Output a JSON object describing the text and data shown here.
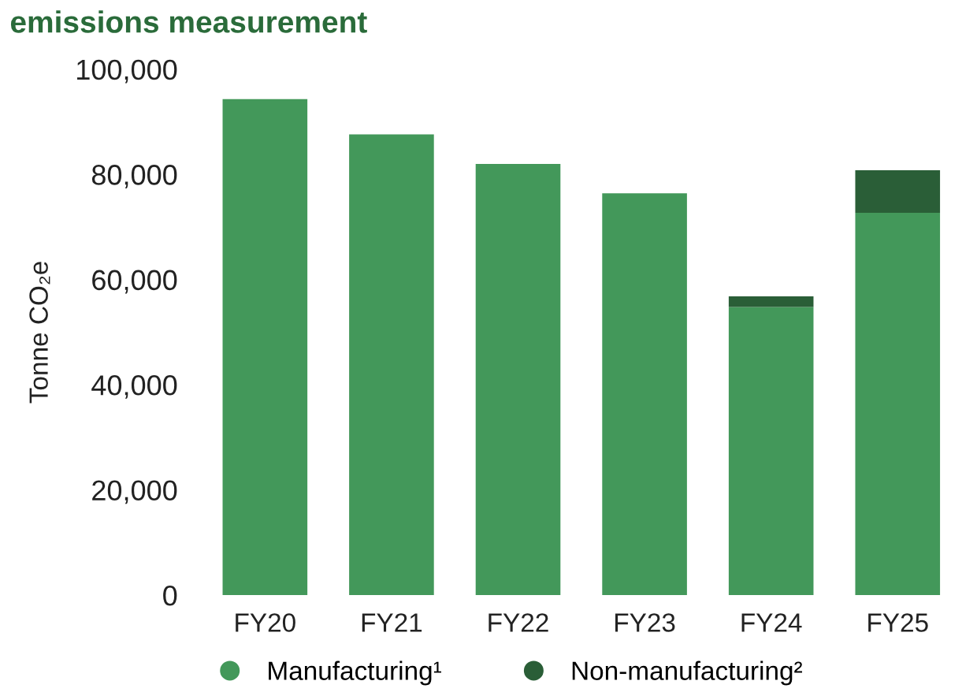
{
  "chart_data": {
    "type": "bar",
    "title": "emissions measurement",
    "ylabel": "Tonne CO₂e",
    "categories": [
      "FY20",
      "FY21",
      "FY22",
      "FY23",
      "FY24",
      "FY25"
    ],
    "stacked": true,
    "series": [
      {
        "name": "Manufacturing¹",
        "color": "#43985a",
        "values": [
          94300,
          87600,
          82000,
          76400,
          54800,
          72700
        ]
      },
      {
        "name": "Non-manufacturing²",
        "color": "#2a5e37",
        "values": [
          null,
          null,
          null,
          null,
          2000,
          8100
        ]
      }
    ],
    "ylim": [
      0,
      100000
    ],
    "yticks": [
      {
        "value": 0,
        "label": "0"
      },
      {
        "value": 20000,
        "label": "20,000"
      },
      {
        "value": 40000,
        "label": "40,000"
      },
      {
        "value": 60000,
        "label": "60,000"
      },
      {
        "value": 80000,
        "label": "80,000"
      },
      {
        "value": 100000,
        "label": "100,000"
      }
    ],
    "grid": false,
    "legend": "bottom",
    "marker": "circle"
  }
}
